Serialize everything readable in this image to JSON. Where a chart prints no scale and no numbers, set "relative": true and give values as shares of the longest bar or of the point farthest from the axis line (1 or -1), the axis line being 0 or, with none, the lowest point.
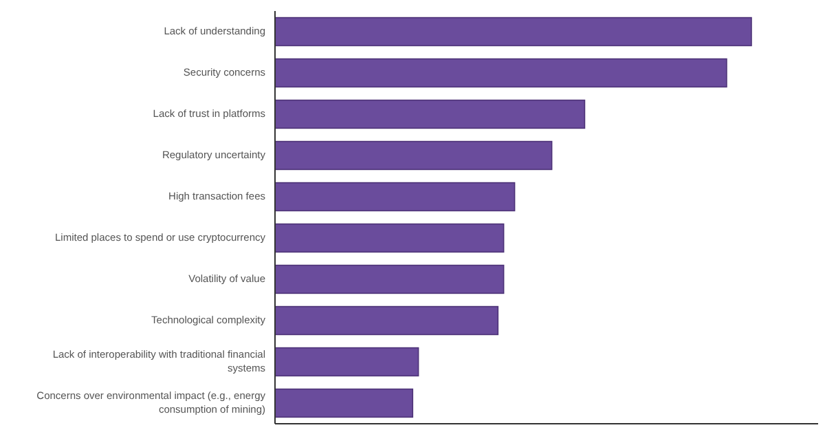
{
  "chart_data": {
    "type": "bar",
    "orientation": "horizontal",
    "relative": true,
    "color": "#6a4c9c",
    "categories": [
      "Lack of understanding",
      "Security concerns",
      "Lack of trust in platforms",
      "Regulatory uncertainty",
      "High transaction fees",
      "Limited places to spend or use cryptocurrency",
      "Volatility of value",
      "Technological complexity",
      "Lack of interoperability with traditional financial systems",
      "Concerns over environmental impact (e.g., energy consumption of mining)"
    ],
    "values": [
      1,
      0.948,
      0.65,
      0.581,
      0.503,
      0.48,
      0.48,
      0.468,
      0.301,
      0.289
    ]
  }
}
